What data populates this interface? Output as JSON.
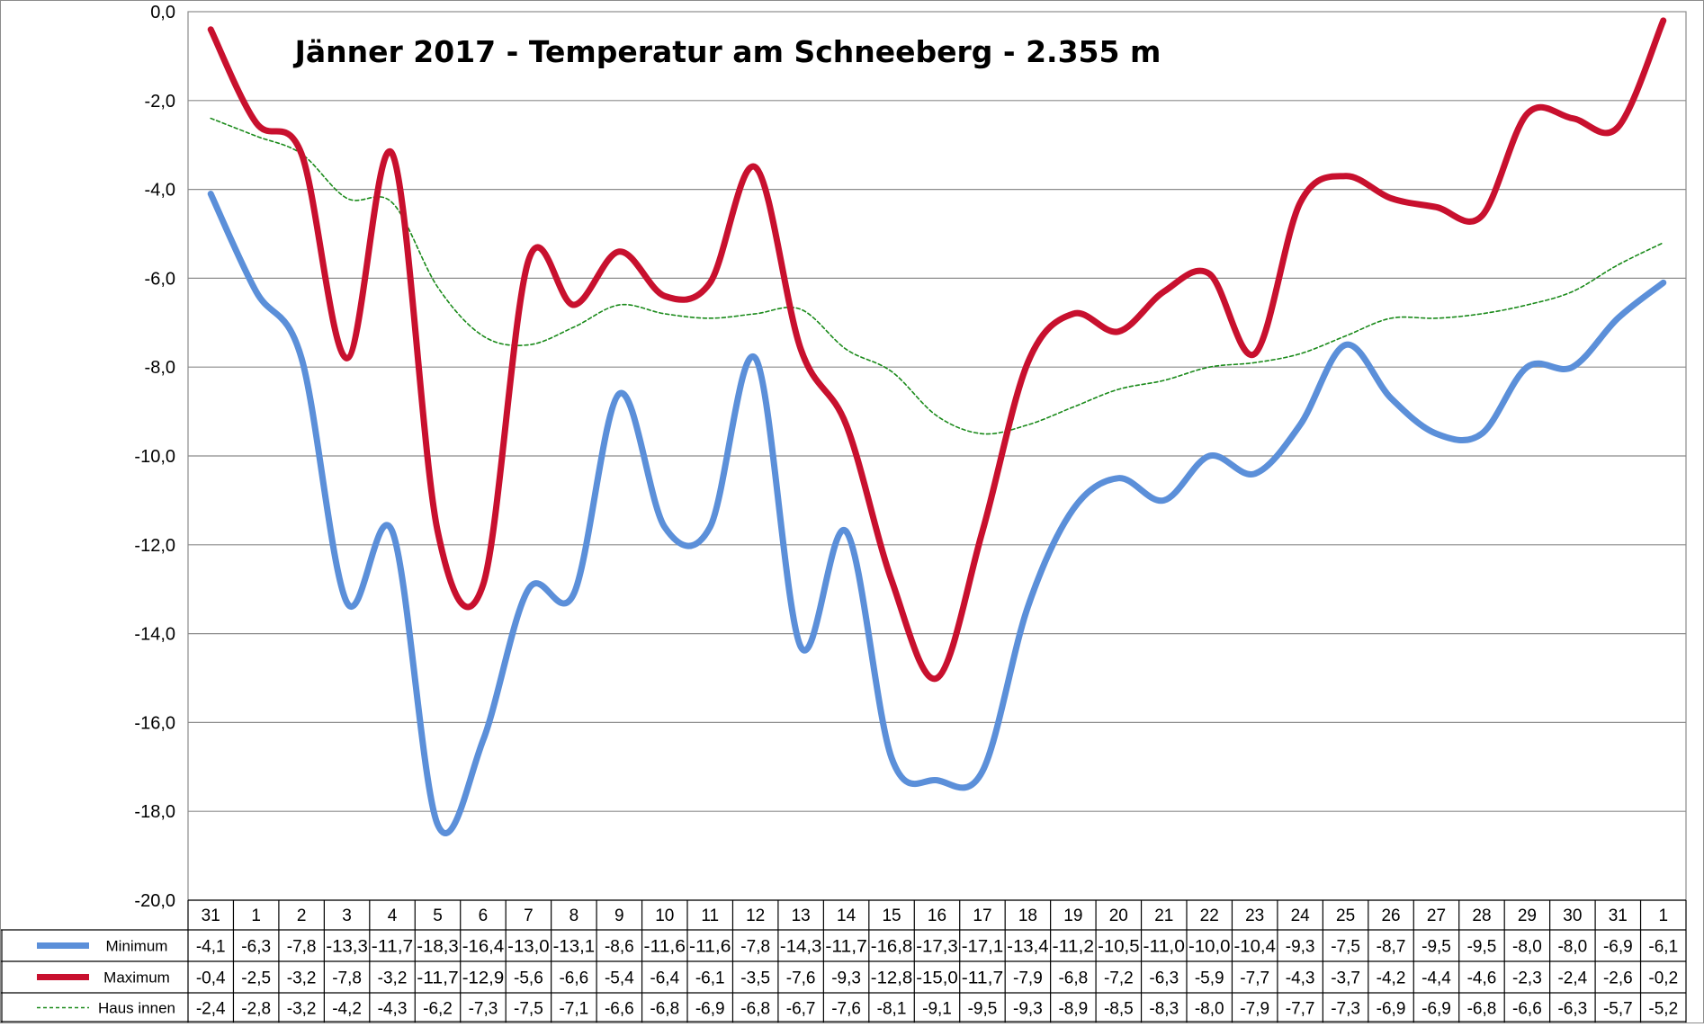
{
  "chart_data": {
    "type": "line",
    "title": "Jänner 2017 - Temperatur am Schneeberg - 2.355 m",
    "ylim": [
      -20,
      0
    ],
    "y_ticks": [
      "0,0",
      "-2,0",
      "-4,0",
      "-6,0",
      "-8,0",
      "-10,0",
      "-12,0",
      "-14,0",
      "-16,0",
      "-18,0",
      "-20,0"
    ],
    "y_tick_values": [
      0,
      -2,
      -4,
      -6,
      -8,
      -10,
      -12,
      -14,
      -16,
      -18,
      -20
    ],
    "grid": true,
    "categories": [
      "31",
      "1",
      "2",
      "3",
      "4",
      "5",
      "6",
      "7",
      "8",
      "9",
      "10",
      "11",
      "12",
      "13",
      "14",
      "15",
      "16",
      "17",
      "18",
      "19",
      "20",
      "21",
      "22",
      "23",
      "24",
      "25",
      "26",
      "27",
      "28",
      "29",
      "30",
      "31",
      "1"
    ],
    "series": [
      {
        "name": "Minimum",
        "color": "#5b8fd9",
        "values": [
          -4.1,
          -6.3,
          -7.8,
          -13.3,
          -11.7,
          -18.3,
          -16.4,
          -13.0,
          -13.1,
          -8.6,
          -11.6,
          -11.6,
          -7.8,
          -14.3,
          -11.7,
          -16.8,
          -17.3,
          -17.1,
          -13.4,
          -11.2,
          -10.5,
          -11.0,
          -10.0,
          -10.4,
          -9.3,
          -7.5,
          -8.7,
          -9.5,
          -9.5,
          -8.0,
          -8.0,
          -6.9,
          -6.1
        ],
        "labels": [
          "-4,1",
          "-6,3",
          "-7,8",
          "-13,3",
          "-11,7",
          "-18,3",
          "-16,4",
          "-13,0",
          "-13,1",
          "-8,6",
          "-11,6",
          "-11,6",
          "-7,8",
          "-14,3",
          "-11,7",
          "-16,8",
          "-17,3",
          "-17,1",
          "-13,4",
          "-11,2",
          "-10,5",
          "-11,0",
          "-10,0",
          "-10,4",
          "-9,3",
          "-7,5",
          "-8,7",
          "-9,5",
          "-9,5",
          "-8,0",
          "-8,0",
          "-6,9",
          "-6,1"
        ]
      },
      {
        "name": "Maximum",
        "color": "#c8102e",
        "values": [
          -0.4,
          -2.5,
          -3.2,
          -7.8,
          -3.2,
          -11.7,
          -12.9,
          -5.6,
          -6.6,
          -5.4,
          -6.4,
          -6.1,
          -3.5,
          -7.6,
          -9.3,
          -12.8,
          -15.0,
          -11.7,
          -7.9,
          -6.8,
          -7.2,
          -6.3,
          -5.9,
          -7.7,
          -4.3,
          -3.7,
          -4.2,
          -4.4,
          -4.6,
          -2.3,
          -2.4,
          -2.6,
          -0.2
        ],
        "labels": [
          "-0,4",
          "-2,5",
          "-3,2",
          "-7,8",
          "-3,2",
          "-11,7",
          "-12,9",
          "-5,6",
          "-6,6",
          "-5,4",
          "-6,4",
          "-6,1",
          "-3,5",
          "-7,6",
          "-9,3",
          "-12,8",
          "-15,0",
          "-11,7",
          "-7,9",
          "-6,8",
          "-7,2",
          "-6,3",
          "-5,9",
          "-7,7",
          "-4,3",
          "-3,7",
          "-4,2",
          "-4,4",
          "-4,6",
          "-2,3",
          "-2,4",
          "-2,6",
          "-0,2"
        ]
      },
      {
        "name": "Haus innen",
        "color": "#1a8a1a",
        "values": [
          -2.4,
          -2.8,
          -3.2,
          -4.2,
          -4.3,
          -6.2,
          -7.3,
          -7.5,
          -7.1,
          -6.6,
          -6.8,
          -6.9,
          -6.8,
          -6.7,
          -7.6,
          -8.1,
          -9.1,
          -9.5,
          -9.3,
          -8.9,
          -8.5,
          -8.3,
          -8.0,
          -7.9,
          -7.7,
          -7.3,
          -6.9,
          -6.9,
          -6.8,
          -6.6,
          -6.3,
          -5.7,
          -5.2
        ],
        "labels": [
          "-2,4",
          "-2,8",
          "-3,2",
          "-4,2",
          "-4,3",
          "-6,2",
          "-7,3",
          "-7,5",
          "-7,1",
          "-6,6",
          "-6,8",
          "-6,9",
          "-6,8",
          "-6,7",
          "-7,6",
          "-8,1",
          "-9,1",
          "-9,5",
          "-9,3",
          "-8,9",
          "-8,5",
          "-8,3",
          "-8,0",
          "-7,9",
          "-7,7",
          "-7,3",
          "-6,9",
          "-6,9",
          "-6,8",
          "-6,6",
          "-6,3",
          "-5,7",
          "-5,2"
        ]
      }
    ]
  }
}
